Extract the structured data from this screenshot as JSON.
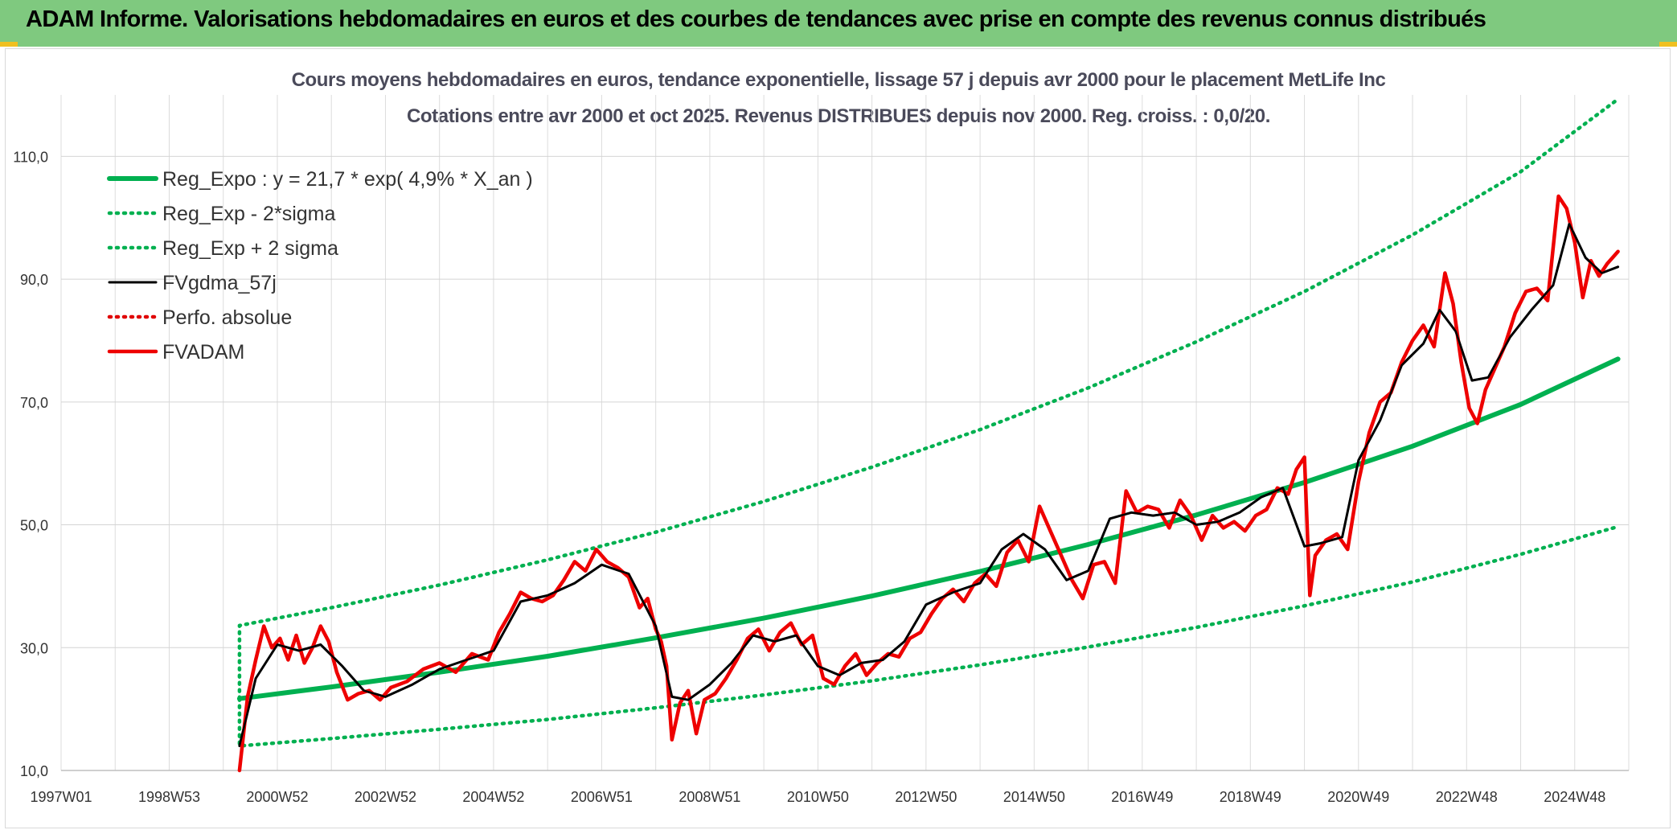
{
  "banner": {
    "title": "ADAM Informe. Valorisations hebdomadaires en euros et des courbes de tendances avec prise en compte des revenus connus distribués"
  },
  "chart_data": {
    "type": "line",
    "title": "Cours moyens hebdomadaires en euros, tendance exponentielle, lissage 57 j depuis avr 2000 pour le placement MetLife Inc",
    "subtitle": "Cotations entre avr 2000 et oct 2025. Revenus DISTRIBUES depuis nov 2000. Reg. croiss. : 0,0/20.",
    "xlabel": "",
    "ylabel": "",
    "xlim": [
      1997.0,
      2026.0
    ],
    "ylim": [
      10,
      120
    ],
    "y_ticks": [
      10,
      30,
      50,
      70,
      90,
      110
    ],
    "y_tick_labels": [
      "10,0",
      "30,0",
      "50,0",
      "70,0",
      "90,0",
      "110,0"
    ],
    "x_ticks": [
      1997.0,
      1999.0,
      2001.0,
      2003.0,
      2005.0,
      2007.0,
      2009.0,
      2011.0,
      2013.0,
      2015.0,
      2017.0,
      2019.0,
      2021.0,
      2023.0,
      2025.0
    ],
    "x_tick_labels": [
      "1997W01",
      "1998W53",
      "2000W52",
      "2002W52",
      "2004W52",
      "2006W51",
      "2008W51",
      "2010W50",
      "2012W50",
      "2014W50",
      "2016W49",
      "2018W49",
      "2020W49",
      "2022W48",
      "2024W48"
    ],
    "grid": true,
    "legend_position": "top-left",
    "colors": {
      "reg_expo": "#00b050",
      "reg_band": "#00b050",
      "fvgdma": "#000000",
      "perfo": "#e00000",
      "fvadam": "#ee0000"
    },
    "series": [
      {
        "name": "Reg_Expo : y = 21,7 * exp( 4,9% *  X_an )",
        "style": "solid-thick",
        "color": "#00b050",
        "x": [
          2000.3,
          2002.0,
          2004.0,
          2006.0,
          2008.0,
          2010.0,
          2012.0,
          2014.0,
          2016.0,
          2018.0,
          2020.0,
          2022.0,
          2024.0,
          2025.8
        ],
        "values": [
          21.7,
          23.6,
          26.0,
          28.6,
          31.6,
          34.8,
          38.4,
          42.4,
          46.8,
          51.6,
          56.9,
          62.8,
          69.6,
          77.0
        ]
      },
      {
        "name": "Reg_Exp - 2*sigma",
        "style": "dotted",
        "color": "#00b050",
        "x": [
          2000.3,
          2002.0,
          2004.0,
          2006.0,
          2008.0,
          2010.0,
          2012.0,
          2014.0,
          2016.0,
          2018.0,
          2020.0,
          2022.0,
          2024.0,
          2025.8
        ],
        "values": [
          14.0,
          15.2,
          16.7,
          18.3,
          20.2,
          22.3,
          24.6,
          27.2,
          30.1,
          33.3,
          36.8,
          40.7,
          45.2,
          49.7
        ]
      },
      {
        "name": "Reg_Exp + 2 sigma",
        "style": "dotted",
        "color": "#00b050",
        "x": [
          2000.3,
          2002.0,
          2004.0,
          2006.0,
          2008.0,
          2010.0,
          2012.0,
          2014.0,
          2016.0,
          2018.0,
          2020.0,
          2022.0,
          2024.0,
          2025.8
        ],
        "values": [
          33.6,
          36.5,
          40.2,
          44.3,
          48.8,
          53.8,
          59.4,
          65.5,
          72.3,
          79.8,
          88.0,
          97.2,
          107.5,
          119.3
        ]
      },
      {
        "name": "FVgdma_57j",
        "style": "solid",
        "color": "#000000",
        "x": [
          2000.3,
          2000.6,
          2001.0,
          2001.4,
          2001.8,
          2002.2,
          2002.6,
          2003.0,
          2003.5,
          2004.0,
          2004.5,
          2005.0,
          2005.5,
          2006.0,
          2006.5,
          2007.0,
          2007.5,
          2008.0,
          2008.3,
          2008.6,
          2009.0,
          2009.4,
          2009.8,
          2010.2,
          2010.6,
          2011.0,
          2011.4,
          2011.8,
          2012.2,
          2012.6,
          2013.0,
          2013.5,
          2014.0,
          2014.4,
          2014.8,
          2015.2,
          2015.6,
          2016.0,
          2016.4,
          2016.8,
          2017.2,
          2017.6,
          2018.0,
          2018.4,
          2018.8,
          2019.2,
          2019.6,
          2020.0,
          2020.3,
          2020.7,
          2021.0,
          2021.4,
          2021.8,
          2022.2,
          2022.5,
          2022.8,
          2023.1,
          2023.4,
          2023.8,
          2024.2,
          2024.6,
          2024.9,
          2025.2,
          2025.5,
          2025.8
        ],
        "values": [
          14.0,
          25.0,
          30.5,
          29.5,
          30.5,
          27.0,
          23.0,
          22.0,
          24.0,
          26.5,
          28.0,
          29.5,
          37.5,
          38.5,
          40.5,
          43.5,
          42.0,
          33.5,
          22.0,
          21.5,
          24.0,
          27.5,
          32.0,
          31.0,
          32.0,
          27.0,
          25.5,
          27.5,
          28.0,
          31.0,
          37.0,
          39.0,
          40.5,
          46.0,
          48.5,
          46.0,
          41.0,
          42.5,
          51.0,
          52.0,
          51.5,
          52.0,
          50.0,
          50.5,
          52.0,
          54.5,
          56.0,
          46.5,
          47.0,
          48.0,
          60.5,
          67.0,
          76.0,
          79.5,
          85.0,
          81.5,
          73.5,
          74.0,
          80.5,
          85.0,
          89.0,
          99.0,
          93.5,
          91.0,
          92.0
        ]
      },
      {
        "name": "Perfo. absolue",
        "style": "dotted",
        "color": "#e00000",
        "x": [],
        "values": []
      },
      {
        "name": "FVADAM",
        "style": "solid-thick",
        "color": "#ee0000",
        "x": [
          2000.3,
          2000.45,
          2000.6,
          2000.75,
          2000.9,
          2001.05,
          2001.2,
          2001.35,
          2001.5,
          2001.65,
          2001.8,
          2001.95,
          2002.1,
          2002.3,
          2002.5,
          2002.7,
          2002.9,
          2003.1,
          2003.4,
          2003.7,
          2004.0,
          2004.3,
          2004.6,
          2004.9,
          2005.1,
          2005.3,
          2005.5,
          2005.7,
          2005.9,
          2006.1,
          2006.3,
          2006.5,
          2006.7,
          2006.9,
          2007.1,
          2007.3,
          2007.5,
          2007.7,
          2007.85,
          2008.0,
          2008.1,
          2008.2,
          2008.3,
          2008.45,
          2008.6,
          2008.75,
          2008.9,
          2009.1,
          2009.3,
          2009.5,
          2009.7,
          2009.9,
          2010.1,
          2010.3,
          2010.5,
          2010.7,
          2010.9,
          2011.1,
          2011.3,
          2011.5,
          2011.7,
          2011.9,
          2012.1,
          2012.3,
          2012.5,
          2012.7,
          2012.9,
          2013.1,
          2013.3,
          2013.5,
          2013.7,
          2013.9,
          2014.1,
          2014.3,
          2014.5,
          2014.7,
          2014.9,
          2015.1,
          2015.3,
          2015.5,
          2015.7,
          2015.9,
          2016.1,
          2016.3,
          2016.5,
          2016.7,
          2016.9,
          2017.1,
          2017.3,
          2017.5,
          2017.7,
          2017.9,
          2018.1,
          2018.3,
          2018.5,
          2018.7,
          2018.9,
          2019.1,
          2019.3,
          2019.5,
          2019.7,
          2019.85,
          2020.0,
          2020.1,
          2020.2,
          2020.4,
          2020.6,
          2020.8,
          2021.0,
          2021.2,
          2021.4,
          2021.6,
          2021.8,
          2022.0,
          2022.2,
          2022.4,
          2022.6,
          2022.75,
          2022.9,
          2023.05,
          2023.2,
          2023.35,
          2023.5,
          2023.7,
          2023.9,
          2024.1,
          2024.3,
          2024.5,
          2024.7,
          2024.85,
          2025.0,
          2025.15,
          2025.3,
          2025.45,
          2025.6,
          2025.8
        ],
        "values": [
          10.0,
          22.0,
          28.0,
          33.5,
          30.0,
          31.5,
          28.0,
          32.0,
          27.5,
          30.0,
          33.5,
          31.0,
          26.0,
          21.5,
          22.5,
          23.0,
          21.5,
          23.5,
          24.5,
          26.5,
          27.5,
          26.0,
          29.0,
          28.0,
          32.5,
          35.5,
          39.0,
          38.0,
          37.5,
          38.5,
          41.0,
          44.0,
          42.5,
          46.0,
          44.0,
          43.0,
          41.5,
          36.5,
          38.0,
          33.0,
          31.0,
          27.0,
          15.0,
          21.0,
          23.0,
          16.0,
          21.5,
          22.5,
          25.0,
          28.0,
          31.5,
          33.0,
          29.5,
          32.5,
          34.0,
          30.5,
          32.0,
          25.0,
          24.0,
          27.0,
          29.0,
          25.5,
          27.5,
          29.0,
          28.5,
          31.5,
          32.5,
          35.5,
          38.0,
          39.5,
          37.5,
          40.5,
          42.0,
          40.0,
          45.5,
          47.5,
          44.0,
          53.0,
          49.0,
          45.0,
          41.0,
          38.0,
          43.5,
          44.0,
          40.5,
          55.5,
          52.0,
          53.0,
          52.5,
          49.5,
          54.0,
          51.5,
          47.5,
          51.5,
          49.5,
          50.5,
          49.0,
          51.5,
          52.5,
          56.0,
          55.0,
          59.0,
          61.0,
          38.5,
          45.0,
          47.5,
          48.5,
          46.0,
          57.0,
          65.0,
          70.0,
          71.5,
          76.5,
          80.0,
          82.5,
          79.0,
          91.0,
          86.0,
          76.5,
          69.0,
          66.5,
          72.0,
          75.0,
          79.0,
          84.5,
          88.0,
          88.5,
          86.5,
          103.5,
          101.5,
          96.0,
          87.0,
          93.0,
          90.5,
          92.5,
          94.5
        ]
      }
    ]
  }
}
